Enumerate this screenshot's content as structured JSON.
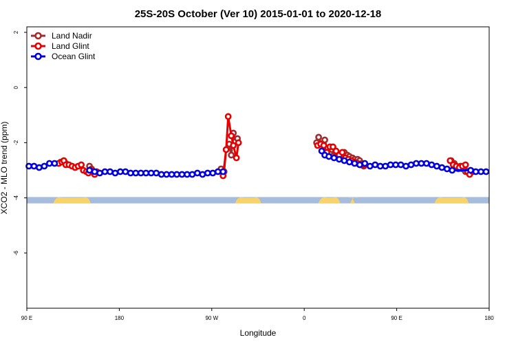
{
  "chart_data": {
    "type": "line",
    "title": "25S-20S October (Ver 10)   2015-01-01 to 2020-12-18",
    "xlabel": "Longitude",
    "ylabel": "XCO2 - MLO trend (ppm)",
    "xlim": [
      90,
      540
    ],
    "ylim": [
      -8,
      2.2
    ],
    "x_ticks": [
      {
        "value": 90,
        "label": "90 E"
      },
      {
        "value": 180,
        "label": "180"
      },
      {
        "value": 270,
        "label": "90 W"
      },
      {
        "value": 360,
        "label": "0"
      },
      {
        "value": 450,
        "label": "90 E"
      },
      {
        "value": 540,
        "label": "180"
      }
    ],
    "y_ticks": [
      {
        "value": 2,
        "label": "2"
      },
      {
        "value": 0,
        "label": "0"
      },
      {
        "value": -2,
        "label": "-2"
      },
      {
        "value": -4,
        "label": "-4"
      },
      {
        "value": -6,
        "label": "-6"
      }
    ],
    "legend_position": "top-left",
    "land_band": {
      "y_range": [
        -4.2,
        -3.97
      ],
      "ocean_color": "#a5bcdc",
      "land_color": "#f7d36a",
      "land_segments": [
        [
          116,
          152
        ],
        [
          293,
          318
        ],
        [
          374,
          395
        ],
        [
          405,
          409
        ],
        [
          487,
          520
        ]
      ]
    },
    "series": [
      {
        "name": "Land Nadir",
        "color": "#a52a2a",
        "x": [
          121,
          123,
          126,
          128,
          151,
          153,
          155,
          279,
          282,
          284,
          287,
          289,
          291,
          293,
          295,
          372,
          374,
          377,
          380,
          382,
          385,
          387,
          390,
          392,
          395,
          399,
          402,
          404,
          407,
          409,
          412,
          414,
          416,
          418,
          503,
          506,
          508,
          510,
          512,
          514,
          517,
          519
        ],
        "y": [
          -2.75,
          -2.7,
          -2.65,
          -2.75,
          -2.85,
          -2.95,
          -3.05,
          -2.95,
          -3.05,
          -2.25,
          -2.05,
          -2.45,
          -1.65,
          -1.95,
          -1.85,
          -2.0,
          -1.8,
          -2.05,
          -1.9,
          -2.2,
          -2.35,
          -2.25,
          -2.35,
          -2.5,
          -2.55,
          -2.35,
          -2.45,
          -2.5,
          -2.55,
          -2.6,
          -2.6,
          -2.65,
          -2.75,
          -2.85,
          -2.65,
          -2.75,
          -2.85,
          -2.95,
          -2.85,
          -2.95,
          -3.05,
          -3.05
        ]
      },
      {
        "name": "Land Glint",
        "color": "#e80000",
        "x": [
          121,
          124,
          126,
          128,
          131,
          134,
          137,
          140,
          143,
          145,
          148,
          150,
          152,
          154,
          156,
          158,
          281,
          284,
          286,
          289,
          291,
          294,
          296,
          373,
          376,
          379,
          382,
          385,
          388,
          391,
          394,
          397,
          400,
          403,
          406,
          409,
          412,
          415,
          418,
          502,
          505,
          508,
          511,
          514,
          517,
          519,
          521,
          524
        ],
        "y": [
          -2.75,
          -2.7,
          -2.65,
          -2.8,
          -2.8,
          -2.85,
          -2.9,
          -2.85,
          -2.8,
          -3.0,
          -3.05,
          -3.1,
          -3.0,
          -3.05,
          -3.15,
          -3.05,
          -3.2,
          -2.25,
          -1.05,
          -1.75,
          -2.1,
          -2.55,
          -2.0,
          -2.1,
          -2.05,
          -2.1,
          -2.35,
          -2.15,
          -2.15,
          -2.3,
          -2.45,
          -2.35,
          -2.55,
          -2.6,
          -2.65,
          -2.7,
          -2.75,
          -2.8,
          -2.8,
          -2.65,
          -2.8,
          -2.85,
          -2.9,
          -2.85,
          -2.8,
          -3.05,
          -3.15,
          -3.05
        ]
      },
      {
        "name": "Ocean Glint",
        "color": "#0000e0",
        "x": [
          92,
          97,
          102,
          107,
          112,
          117,
          151,
          156,
          161,
          166,
          171,
          176,
          181,
          186,
          191,
          196,
          201,
          206,
          211,
          216,
          221,
          226,
          231,
          236,
          241,
          246,
          251,
          256,
          261,
          266,
          271,
          276,
          281,
          377,
          380,
          384,
          389,
          394,
          399,
          404,
          409,
          414,
          419,
          424,
          429,
          434,
          439,
          444,
          449,
          454,
          459,
          464,
          469,
          474,
          479,
          484,
          489,
          494,
          499,
          504,
          522,
          527,
          532,
          537
        ],
        "y": [
          -2.85,
          -2.85,
          -2.9,
          -2.85,
          -2.75,
          -2.75,
          -3.0,
          -3.05,
          -3.1,
          -3.05,
          -3.05,
          -3.1,
          -3.05,
          -3.05,
          -3.1,
          -3.1,
          -3.1,
          -3.1,
          -3.1,
          -3.1,
          -3.15,
          -3.15,
          -3.15,
          -3.15,
          -3.15,
          -3.15,
          -3.15,
          -3.1,
          -3.15,
          -3.1,
          -3.1,
          -3.05,
          -3.05,
          -2.3,
          -2.45,
          -2.5,
          -2.55,
          -2.6,
          -2.65,
          -2.7,
          -2.75,
          -2.8,
          -2.75,
          -2.85,
          -2.8,
          -2.85,
          -2.85,
          -2.8,
          -2.8,
          -2.8,
          -2.85,
          -2.8,
          -2.75,
          -2.75,
          -2.75,
          -2.8,
          -2.85,
          -2.9,
          -2.95,
          -3.0,
          -3.0,
          -3.05,
          -3.05,
          -3.05
        ]
      }
    ]
  }
}
